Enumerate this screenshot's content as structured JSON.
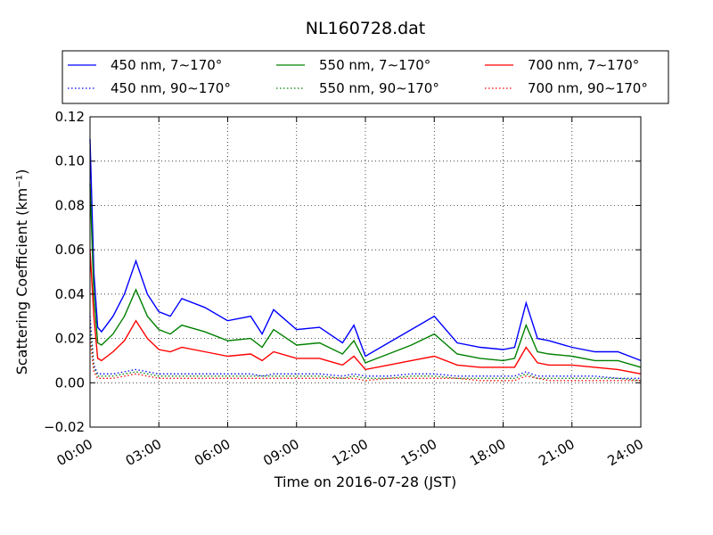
{
  "chart_data": {
    "type": "line",
    "title": "NL160728.dat",
    "xlabel": "Time on 2016-07-28 (JST)",
    "ylabel": "Scattering Coefficient (km⁻¹)",
    "xlim": [
      "00:00",
      "24:00"
    ],
    "ylim": [
      -0.02,
      0.12
    ],
    "grid": true,
    "legend_position": "top-center",
    "x_ticks": [
      "00:00",
      "03:00",
      "06:00",
      "09:00",
      "12:00",
      "15:00",
      "18:00",
      "21:00",
      "24:00"
    ],
    "y_ticks": [
      "−0.02",
      "0.00",
      "0.02",
      "0.04",
      "0.06",
      "0.08",
      "0.10",
      "0.12"
    ],
    "x": [
      "00:00",
      "00:10",
      "00:20",
      "00:30",
      "01:00",
      "01:30",
      "02:00",
      "02:30",
      "03:00",
      "03:30",
      "04:00",
      "05:00",
      "06:00",
      "07:00",
      "07:30",
      "08:00",
      "09:00",
      "10:00",
      "11:00",
      "11:30",
      "12:00",
      "13:00",
      "14:00",
      "15:00",
      "16:00",
      "17:00",
      "18:00",
      "18:30",
      "19:00",
      "19:30",
      "20:00",
      "21:00",
      "22:00",
      "23:00",
      "24:00"
    ],
    "series": [
      {
        "name": "450 nm, 7∼170°",
        "style": "solid",
        "color": "#0000ff",
        "values": [
          0.11,
          0.05,
          0.025,
          0.023,
          0.03,
          0.04,
          0.055,
          0.04,
          0.032,
          0.03,
          0.038,
          0.034,
          0.028,
          0.03,
          0.022,
          0.033,
          0.024,
          0.025,
          0.018,
          0.026,
          0.012,
          0.018,
          0.024,
          0.03,
          0.018,
          0.016,
          0.015,
          0.016,
          0.036,
          0.02,
          0.019,
          0.016,
          0.014,
          0.014,
          0.01
        ]
      },
      {
        "name": "450 nm, 90∼170°",
        "style": "dotted",
        "color": "#0000ff",
        "values": [
          0.03,
          0.008,
          0.004,
          0.004,
          0.004,
          0.005,
          0.006,
          0.005,
          0.004,
          0.004,
          0.004,
          0.004,
          0.004,
          0.004,
          0.003,
          0.004,
          0.004,
          0.004,
          0.003,
          0.004,
          0.003,
          0.003,
          0.004,
          0.004,
          0.003,
          0.003,
          0.003,
          0.003,
          0.005,
          0.003,
          0.003,
          0.003,
          0.003,
          0.002,
          0.002
        ]
      },
      {
        "name": "550 nm, 7∼170°",
        "style": "solid",
        "color": "#008000",
        "values": [
          0.09,
          0.04,
          0.018,
          0.017,
          0.022,
          0.03,
          0.042,
          0.03,
          0.024,
          0.022,
          0.026,
          0.023,
          0.019,
          0.02,
          0.016,
          0.024,
          0.017,
          0.018,
          0.013,
          0.019,
          0.009,
          0.013,
          0.017,
          0.022,
          0.013,
          0.011,
          0.01,
          0.011,
          0.026,
          0.014,
          0.013,
          0.012,
          0.01,
          0.01,
          0.007
        ]
      },
      {
        "name": "550 nm, 90∼170°",
        "style": "dotted",
        "color": "#008000",
        "values": [
          0.025,
          0.007,
          0.003,
          0.003,
          0.003,
          0.004,
          0.005,
          0.004,
          0.003,
          0.003,
          0.003,
          0.003,
          0.003,
          0.003,
          0.003,
          0.003,
          0.003,
          0.003,
          0.002,
          0.003,
          0.002,
          0.002,
          0.003,
          0.003,
          0.002,
          0.002,
          0.002,
          0.002,
          0.004,
          0.002,
          0.002,
          0.002,
          0.002,
          0.002,
          0.001
        ]
      },
      {
        "name": "700 nm, 7∼170°",
        "style": "solid",
        "color": "#ff0000",
        "values": [
          0.06,
          0.03,
          0.011,
          0.01,
          0.014,
          0.019,
          0.028,
          0.02,
          0.015,
          0.014,
          0.016,
          0.014,
          0.012,
          0.013,
          0.01,
          0.014,
          0.011,
          0.011,
          0.008,
          0.012,
          0.006,
          0.008,
          0.01,
          0.012,
          0.008,
          0.007,
          0.007,
          0.007,
          0.016,
          0.009,
          0.008,
          0.008,
          0.007,
          0.006,
          0.004
        ]
      },
      {
        "name": "700 nm, 90∼170°",
        "style": "dotted",
        "color": "#ff0000",
        "values": [
          0.02,
          0.005,
          0.002,
          0.002,
          0.002,
          0.003,
          0.004,
          0.003,
          0.002,
          0.002,
          0.002,
          0.002,
          0.002,
          0.002,
          0.002,
          0.002,
          0.002,
          0.002,
          0.002,
          0.002,
          0.001,
          0.002,
          0.002,
          0.002,
          0.002,
          0.001,
          0.001,
          0.001,
          0.003,
          0.002,
          0.001,
          0.001,
          0.001,
          0.001,
          0.001
        ]
      }
    ]
  }
}
